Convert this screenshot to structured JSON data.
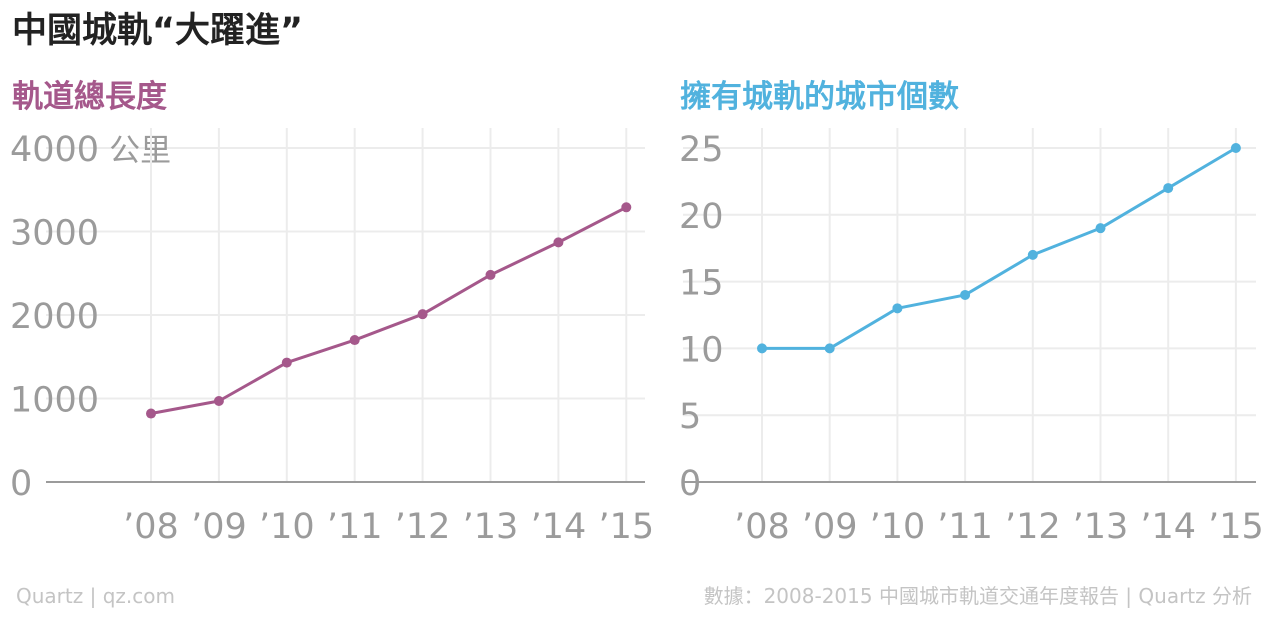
{
  "header": {
    "title": "中國城軌“大躍進”"
  },
  "footer": {
    "credit": "Quartz | qz.com",
    "source": "數據：2008-2015 中國城市軌道交通年度報告 | Quartz 分析"
  },
  "chart_data": [
    {
      "type": "line",
      "title": "軌道總長度",
      "unit_label": "公里",
      "color": "#a5588b",
      "categories": [
        "’08",
        "’09",
        "’10",
        "’11",
        "’12",
        "’13",
        "’14",
        "’15"
      ],
      "values": [
        820,
        970,
        1430,
        1700,
        2010,
        2480,
        2870,
        3290
      ],
      "yticks": [
        0,
        1000,
        2000,
        3000,
        4000
      ],
      "ylim": [
        0,
        4000
      ],
      "grid": true
    },
    {
      "type": "line",
      "title": "擁有城軌的城市個數",
      "color": "#51b2de",
      "categories": [
        "’08",
        "’09",
        "’10",
        "’11",
        "’12",
        "’13",
        "’14",
        "’15"
      ],
      "values": [
        10,
        10,
        13,
        14,
        17,
        19,
        22,
        25
      ],
      "yticks": [
        0,
        5,
        10,
        15,
        20,
        25
      ],
      "ylim": [
        0,
        25
      ],
      "grid": true
    }
  ]
}
